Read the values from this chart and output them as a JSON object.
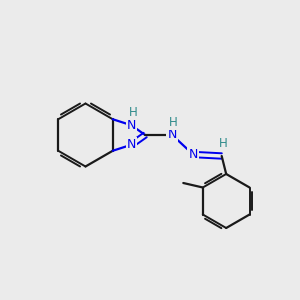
{
  "background_color": "#ebebeb",
  "bond_color": "#1a1a1a",
  "nitrogen_color": "#0000ee",
  "hydrogen_color": "#2e8b8b",
  "figsize": [
    3.0,
    3.0
  ],
  "dpi": 100,
  "xlim": [
    0,
    10
  ],
  "ylim": [
    0,
    10
  ]
}
